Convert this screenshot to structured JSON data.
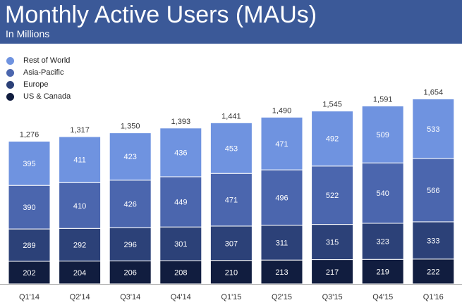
{
  "header": {
    "title": "Monthly Active Users (MAUs)",
    "subtitle": "In Millions"
  },
  "chart_data": {
    "type": "bar",
    "stacked": true,
    "title": "Monthly Active Users (MAUs)",
    "subtitle": "In Millions",
    "xlabel": "",
    "ylabel": "",
    "ylim": [
      0,
      1700
    ],
    "grid": false,
    "legend_position": "top-left",
    "categories": [
      "Q1'14",
      "Q2'14",
      "Q3'14",
      "Q4'14",
      "Q1'15",
      "Q2'15",
      "Q3'15",
      "Q4'15",
      "Q1'16"
    ],
    "totals": [
      "1,276",
      "1,317",
      "1,350",
      "1,393",
      "1,441",
      "1,490",
      "1,545",
      "1,591",
      "1,654"
    ],
    "series": [
      {
        "name": "US & Canada",
        "color": "#111d3f",
        "label_color": "#ffffff",
        "values": [
          202,
          204,
          206,
          208,
          210,
          213,
          217,
          219,
          222
        ]
      },
      {
        "name": "Europe",
        "color": "#2c4178",
        "label_color": "#ffffff",
        "values": [
          289,
          292,
          296,
          301,
          307,
          311,
          315,
          323,
          333
        ]
      },
      {
        "name": "Asia-Pacific",
        "color": "#4b66ae",
        "label_color": "#ffffff",
        "values": [
          390,
          410,
          426,
          449,
          471,
          496,
          522,
          540,
          566
        ]
      },
      {
        "name": "Rest of World",
        "color": "#6f93e0",
        "label_color": "#ffffff",
        "values": [
          395,
          411,
          423,
          436,
          453,
          471,
          492,
          509,
          533
        ]
      }
    ],
    "legend_order": [
      "Rest of World",
      "Asia-Pacific",
      "Europe",
      "US & Canada"
    ]
  }
}
